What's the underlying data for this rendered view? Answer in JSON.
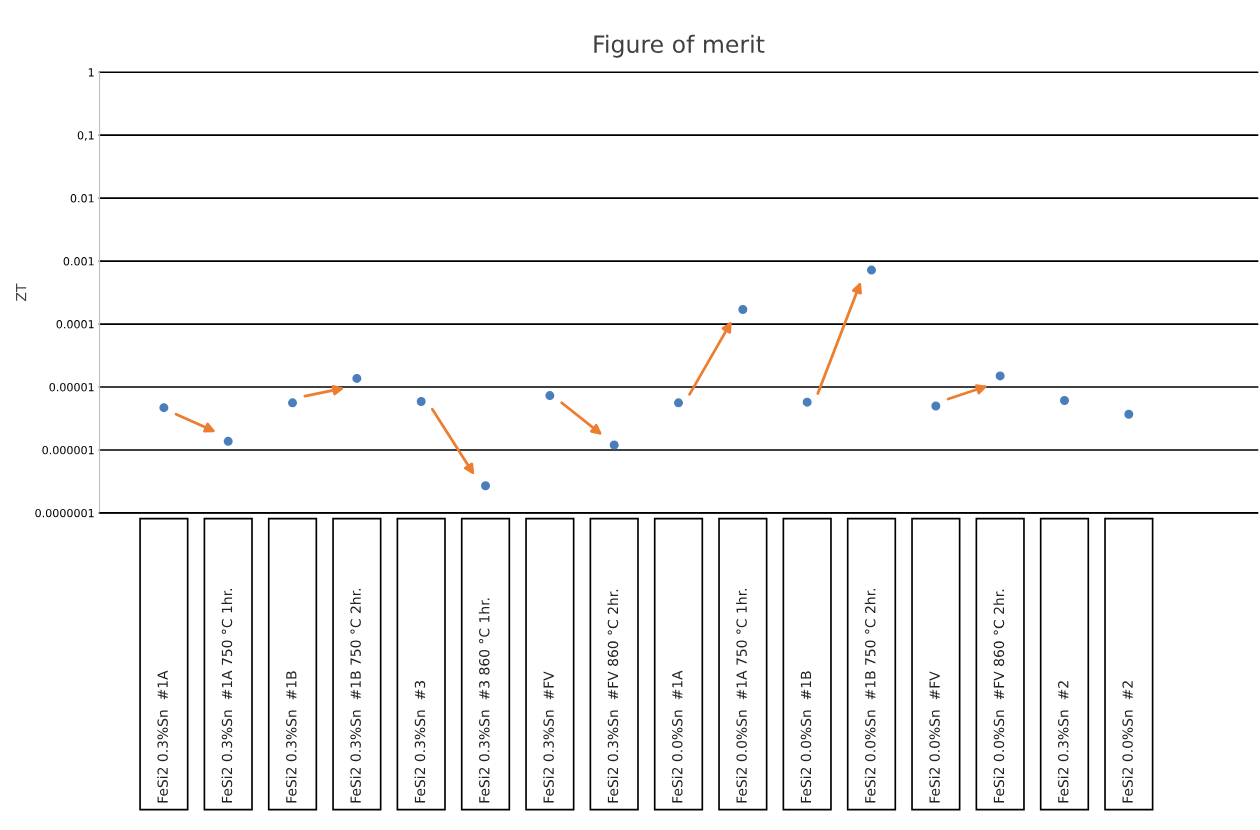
{
  "chart_data": {
    "type": "scatter",
    "title": "Figure of merit",
    "ylabel": "ZT",
    "categories": [
      "FeSi2 0.3%Sn  #1A",
      "FeSi2 0.3%Sn  #1A 750 °C 1hr.",
      "FeSi2 0.3%Sn  #1B",
      "FeSi2 0.3%Sn  #1B 750 °C 2hr.",
      "FeSi2 0.3%Sn  #3",
      "FeSi2 0.3%Sn  #3 860 °C 1hr.",
      "FeSi2 0.3%Sn  #FV",
      "FeSi2 0.3%Sn  #FV 860 °C 2hr.",
      "FeSi2 0.0%Sn  #1A",
      "FeSi2 0.0%Sn  #1A 750 °C 1hr.",
      "FeSi2 0.0%Sn  #1B",
      "FeSi2 0.0%Sn  #1B 750 °C 2hr.",
      "FeSi2 0.0%Sn  #FV",
      "FeSi2 0.0%Sn  #FV 860 °C 2hr.",
      "FeSi2 0.3%Sn  #2",
      "FeSi2 0.0%Sn  #2"
    ],
    "series": [
      {
        "color": "#4a7ebb",
        "values": [
          4.7e-06,
          1.37e-06,
          5.6e-06,
          1.37e-05,
          5.9e-06,
          2.7e-07,
          7.3e-06,
          1.2e-06,
          5.6e-06,
          0.00017,
          5.75e-06,
          0.00072,
          5e-06,
          1.5e-05,
          6.1e-06,
          3.7e-06
        ]
      }
    ],
    "log": true,
    "ylim": [
      1e-07,
      1
    ],
    "yticks": [
      {
        "value": 1e-07,
        "label": "0.0000001"
      },
      {
        "value": 1e-06,
        "label": "0.000001"
      },
      {
        "value": 1e-05,
        "label": "0.00001"
      },
      {
        "value": 0.0001,
        "label": "0.0001"
      },
      {
        "value": 0.001,
        "label": "0.001"
      },
      {
        "value": 0.01,
        "label": "0.01"
      },
      {
        "value": 0.1,
        "label": "0,1"
      },
      {
        "value": 1,
        "label": "1"
      }
    ],
    "grid": "y",
    "marker": "circle"
  }
}
